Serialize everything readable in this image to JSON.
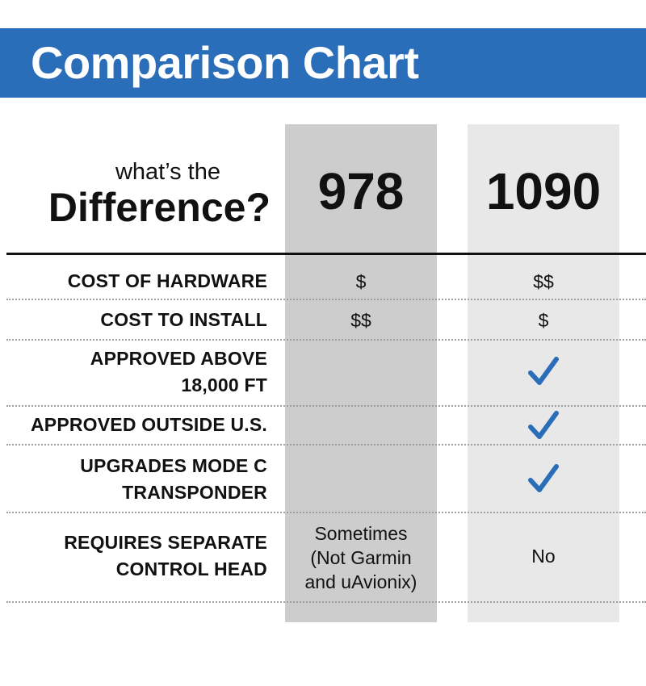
{
  "title": "Comparison Chart",
  "header": {
    "subtitle_line1": "what’s the",
    "subtitle_line2": "Difference?",
    "columns": [
      "978",
      "1090"
    ]
  },
  "rows": [
    {
      "label_lines": [
        "COST OF HARDWARE"
      ],
      "col978": "$",
      "col1090": "$$"
    },
    {
      "label_lines": [
        "COST TO INSTALL"
      ],
      "col978": "$$",
      "col1090": "$"
    },
    {
      "label_lines": [
        "APPROVED ABOVE",
        "18,000 FT"
      ],
      "col978": "",
      "col1090": "check-icon"
    },
    {
      "label_lines": [
        "APPROVED OUTSIDE U.S."
      ],
      "col978": "",
      "col1090": "check-icon"
    },
    {
      "label_lines": [
        "UPGRADES MODE C",
        "TRANSPONDER"
      ],
      "col978": "",
      "col1090": "check-icon"
    },
    {
      "label_lines": [
        "REQUIRES SEPARATE",
        "CONTROL HEAD"
      ],
      "col978_lines": [
        "Sometimes",
        "(Not Garmin",
        "and uAvionix)"
      ],
      "col1090": "No"
    }
  ],
  "colors": {
    "banner": "#2a6db8",
    "col978_bg": "#cdcdcd",
    "col1090_bg": "#e8e8e8",
    "check": "#2a6db8"
  }
}
